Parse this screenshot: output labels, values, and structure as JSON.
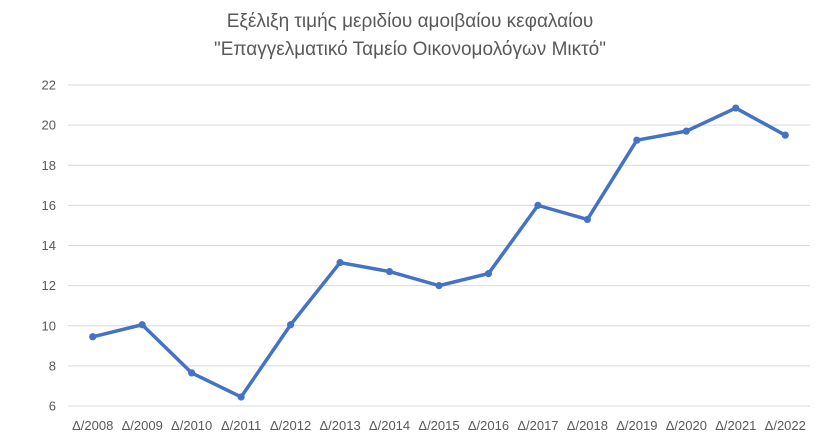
{
  "chart_data": {
    "type": "line",
    "title_lines": [
      "Εξέλιξη τιμής μεριδίου αμοιβαίου κεφαλαίου",
      "\"Επαγγελματικό Ταμείο Οικονομολόγων Μικτό\""
    ],
    "categories": [
      "Δ/2008",
      "Δ/2009",
      "Δ/2010",
      "Δ/2011",
      "Δ/2012",
      "Δ/2013",
      "Δ/2014",
      "Δ/2015",
      "Δ/2016",
      "Δ/2017",
      "Δ/2018",
      "Δ/2019",
      "Δ/2020",
      "Δ/2021",
      "Δ/2022"
    ],
    "series": [
      {
        "values": [
          9.45,
          10.05,
          7.65,
          6.45,
          10.05,
          13.15,
          12.7,
          12.0,
          12.6,
          16.0,
          15.3,
          19.25,
          19.7,
          20.85,
          19.5
        ]
      }
    ],
    "ylim": [
      6,
      22
    ],
    "yticks": [
      6,
      8,
      10,
      12,
      14,
      16,
      18,
      20,
      22
    ],
    "grid": true,
    "legend": "none",
    "line_color": "#4472c4",
    "grid_color": "#d9d9d9",
    "text_color": "#595959"
  }
}
